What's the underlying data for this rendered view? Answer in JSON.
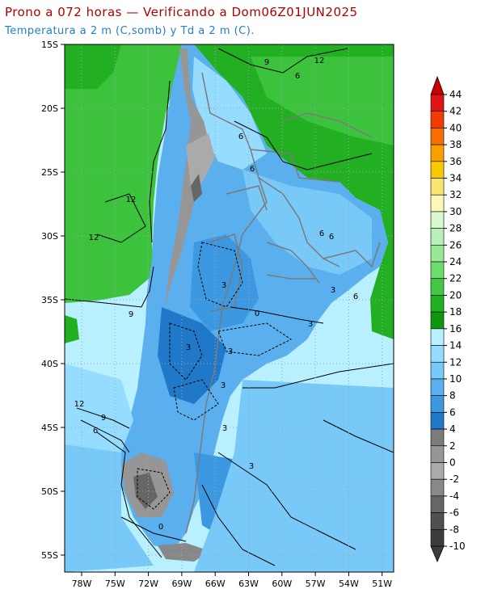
{
  "header": {
    "title": "Prono a 072 horas — Verificando a Dom06Z01JUN2025",
    "subtitle": "Temperatura a 2 m (C,somb) y Td a 2 m (C)."
  },
  "map": {
    "lat_range": [
      -56,
      -15
    ],
    "lon_range": [
      -80,
      -50
    ],
    "lat_ticks": [
      "15S",
      "20S",
      "25S",
      "30S",
      "35S",
      "40S",
      "45S",
      "50S",
      "55S"
    ],
    "lon_ticks": [
      "78W",
      "75W",
      "72W",
      "69W",
      "66W",
      "63W",
      "60W",
      "57W",
      "54W",
      "51W"
    ]
  },
  "colorbar": {
    "labels": [
      "44",
      "42",
      "40",
      "38",
      "36",
      "34",
      "32",
      "30",
      "28",
      "26",
      "24",
      "22",
      "20",
      "18",
      "16",
      "14",
      "12",
      "10",
      "8",
      "6",
      "4",
      "2",
      "0",
      "-2",
      "-4",
      "-6",
      "-8",
      "-10"
    ],
    "colors": [
      "#c80000",
      "#e01414",
      "#f03c00",
      "#f86e00",
      "#f8a000",
      "#f8c800",
      "#f8e670",
      "#fff8b8",
      "#d8f8d0",
      "#b8f0b8",
      "#98e898",
      "#6cdc6c",
      "#44c844",
      "#22b022",
      "#0e960e",
      "#b8f0ff",
      "#96dcff",
      "#78c8f8",
      "#5ab0ee",
      "#3c98e0",
      "#2078c8",
      "#7c7c7c",
      "#969696",
      "#aaaaaa",
      "#888888",
      "#666666",
      "#505050",
      "#3c3c3c"
    ]
  },
  "contour_labels": {
    "north": [
      "9",
      "12",
      "6",
      "6",
      "6"
    ],
    "central": [
      "12",
      "12",
      "6",
      "3",
      "3",
      "6",
      "6"
    ],
    "south": [
      "9",
      "12",
      "9",
      "6",
      "3",
      "3",
      "3",
      "3",
      "0",
      "3",
      "3",
      "0"
    ]
  }
}
